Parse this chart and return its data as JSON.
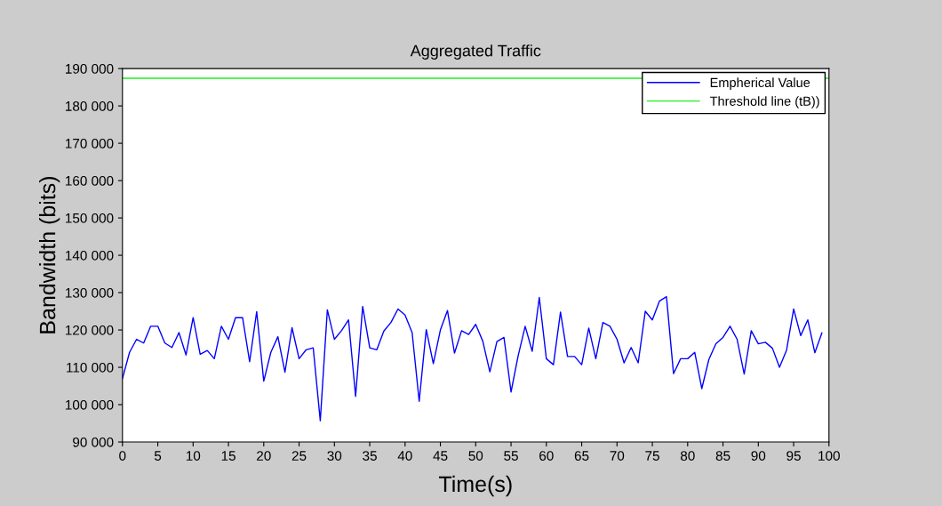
{
  "chart_data": {
    "type": "line",
    "title": "Aggregated Traffic",
    "xlabel": "Time(s)",
    "ylabel": "Bandwidth (bits)",
    "x": [
      0,
      1,
      2,
      3,
      4,
      5,
      6,
      7,
      8,
      9,
      10,
      11,
      12,
      13,
      14,
      15,
      16,
      17,
      18,
      19,
      20,
      21,
      22,
      23,
      24,
      25,
      26,
      27,
      28,
      29,
      30,
      31,
      32,
      33,
      34,
      35,
      36,
      37,
      38,
      39,
      40,
      41,
      42,
      43,
      44,
      45,
      46,
      47,
      48,
      49,
      50,
      51,
      52,
      53,
      54,
      55,
      56,
      57,
      58,
      59,
      60,
      61,
      62,
      63,
      64,
      65,
      66,
      67,
      68,
      69,
      70,
      71,
      72,
      73,
      74,
      75,
      76,
      77,
      78,
      79,
      80,
      81,
      82,
      83,
      84,
      85,
      86,
      87,
      88,
      89,
      90,
      91,
      92,
      93,
      94,
      95,
      96,
      97,
      98,
      99
    ],
    "series": [
      {
        "name": "Empherical Value",
        "color": "#0000ff",
        "values": [
          107000,
          114000,
          117500,
          116500,
          121000,
          121000,
          116500,
          115300,
          119300,
          113300,
          123300,
          113500,
          114500,
          112300,
          121000,
          117500,
          123300,
          123300,
          111500,
          124900,
          106300,
          114000,
          118200,
          108700,
          120600,
          112300,
          114700,
          115200,
          95700,
          125400,
          117500,
          119800,
          122700,
          102200,
          126300,
          115200,
          114700,
          119700,
          122000,
          125600,
          124000,
          119300,
          100900,
          120100,
          111000,
          120000,
          125200,
          113800,
          119800,
          118800,
          121500,
          117000,
          108800,
          116900,
          118000,
          103400,
          113000,
          121000,
          114300,
          128700,
          112300,
          110700,
          124800,
          112900,
          112900,
          110700,
          120500,
          112300,
          122000,
          121000,
          117500,
          111200,
          115300,
          111200,
          125000,
          122700,
          127700,
          128900,
          108300,
          112300,
          112300,
          114000,
          104300,
          112100,
          116300,
          118000,
          121000,
          117500,
          108200,
          119800,
          116300,
          116700,
          115100,
          110000,
          114600,
          125600,
          118500,
          122700,
          113900,
          119200
        ]
      }
    ],
    "ref_lines": [
      {
        "axis": "y",
        "value": 187400,
        "label": "Threshold line (tB))",
        "color": "#22ee22"
      }
    ],
    "xlim": [
      0,
      100
    ],
    "xticks": [
      0,
      5,
      10,
      15,
      20,
      25,
      30,
      35,
      40,
      45,
      50,
      55,
      60,
      65,
      70,
      75,
      80,
      85,
      90,
      95,
      100
    ],
    "ylim": [
      90000,
      190000
    ],
    "yticks": [
      {
        "value": 90000,
        "label": "90 000"
      },
      {
        "value": 100000,
        "label": "100 000"
      },
      {
        "value": 110000,
        "label": "110 000"
      },
      {
        "value": 120000,
        "label": "120 000"
      },
      {
        "value": 130000,
        "label": "130 000"
      },
      {
        "value": 140000,
        "label": "140 000"
      },
      {
        "value": 150000,
        "label": "150 000"
      },
      {
        "value": 160000,
        "label": "160 000"
      },
      {
        "value": 170000,
        "label": "170 000"
      },
      {
        "value": 180000,
        "label": "180 000"
      },
      {
        "value": 190000,
        "label": "190 000"
      }
    ],
    "legend": "top right",
    "grid": false
  }
}
